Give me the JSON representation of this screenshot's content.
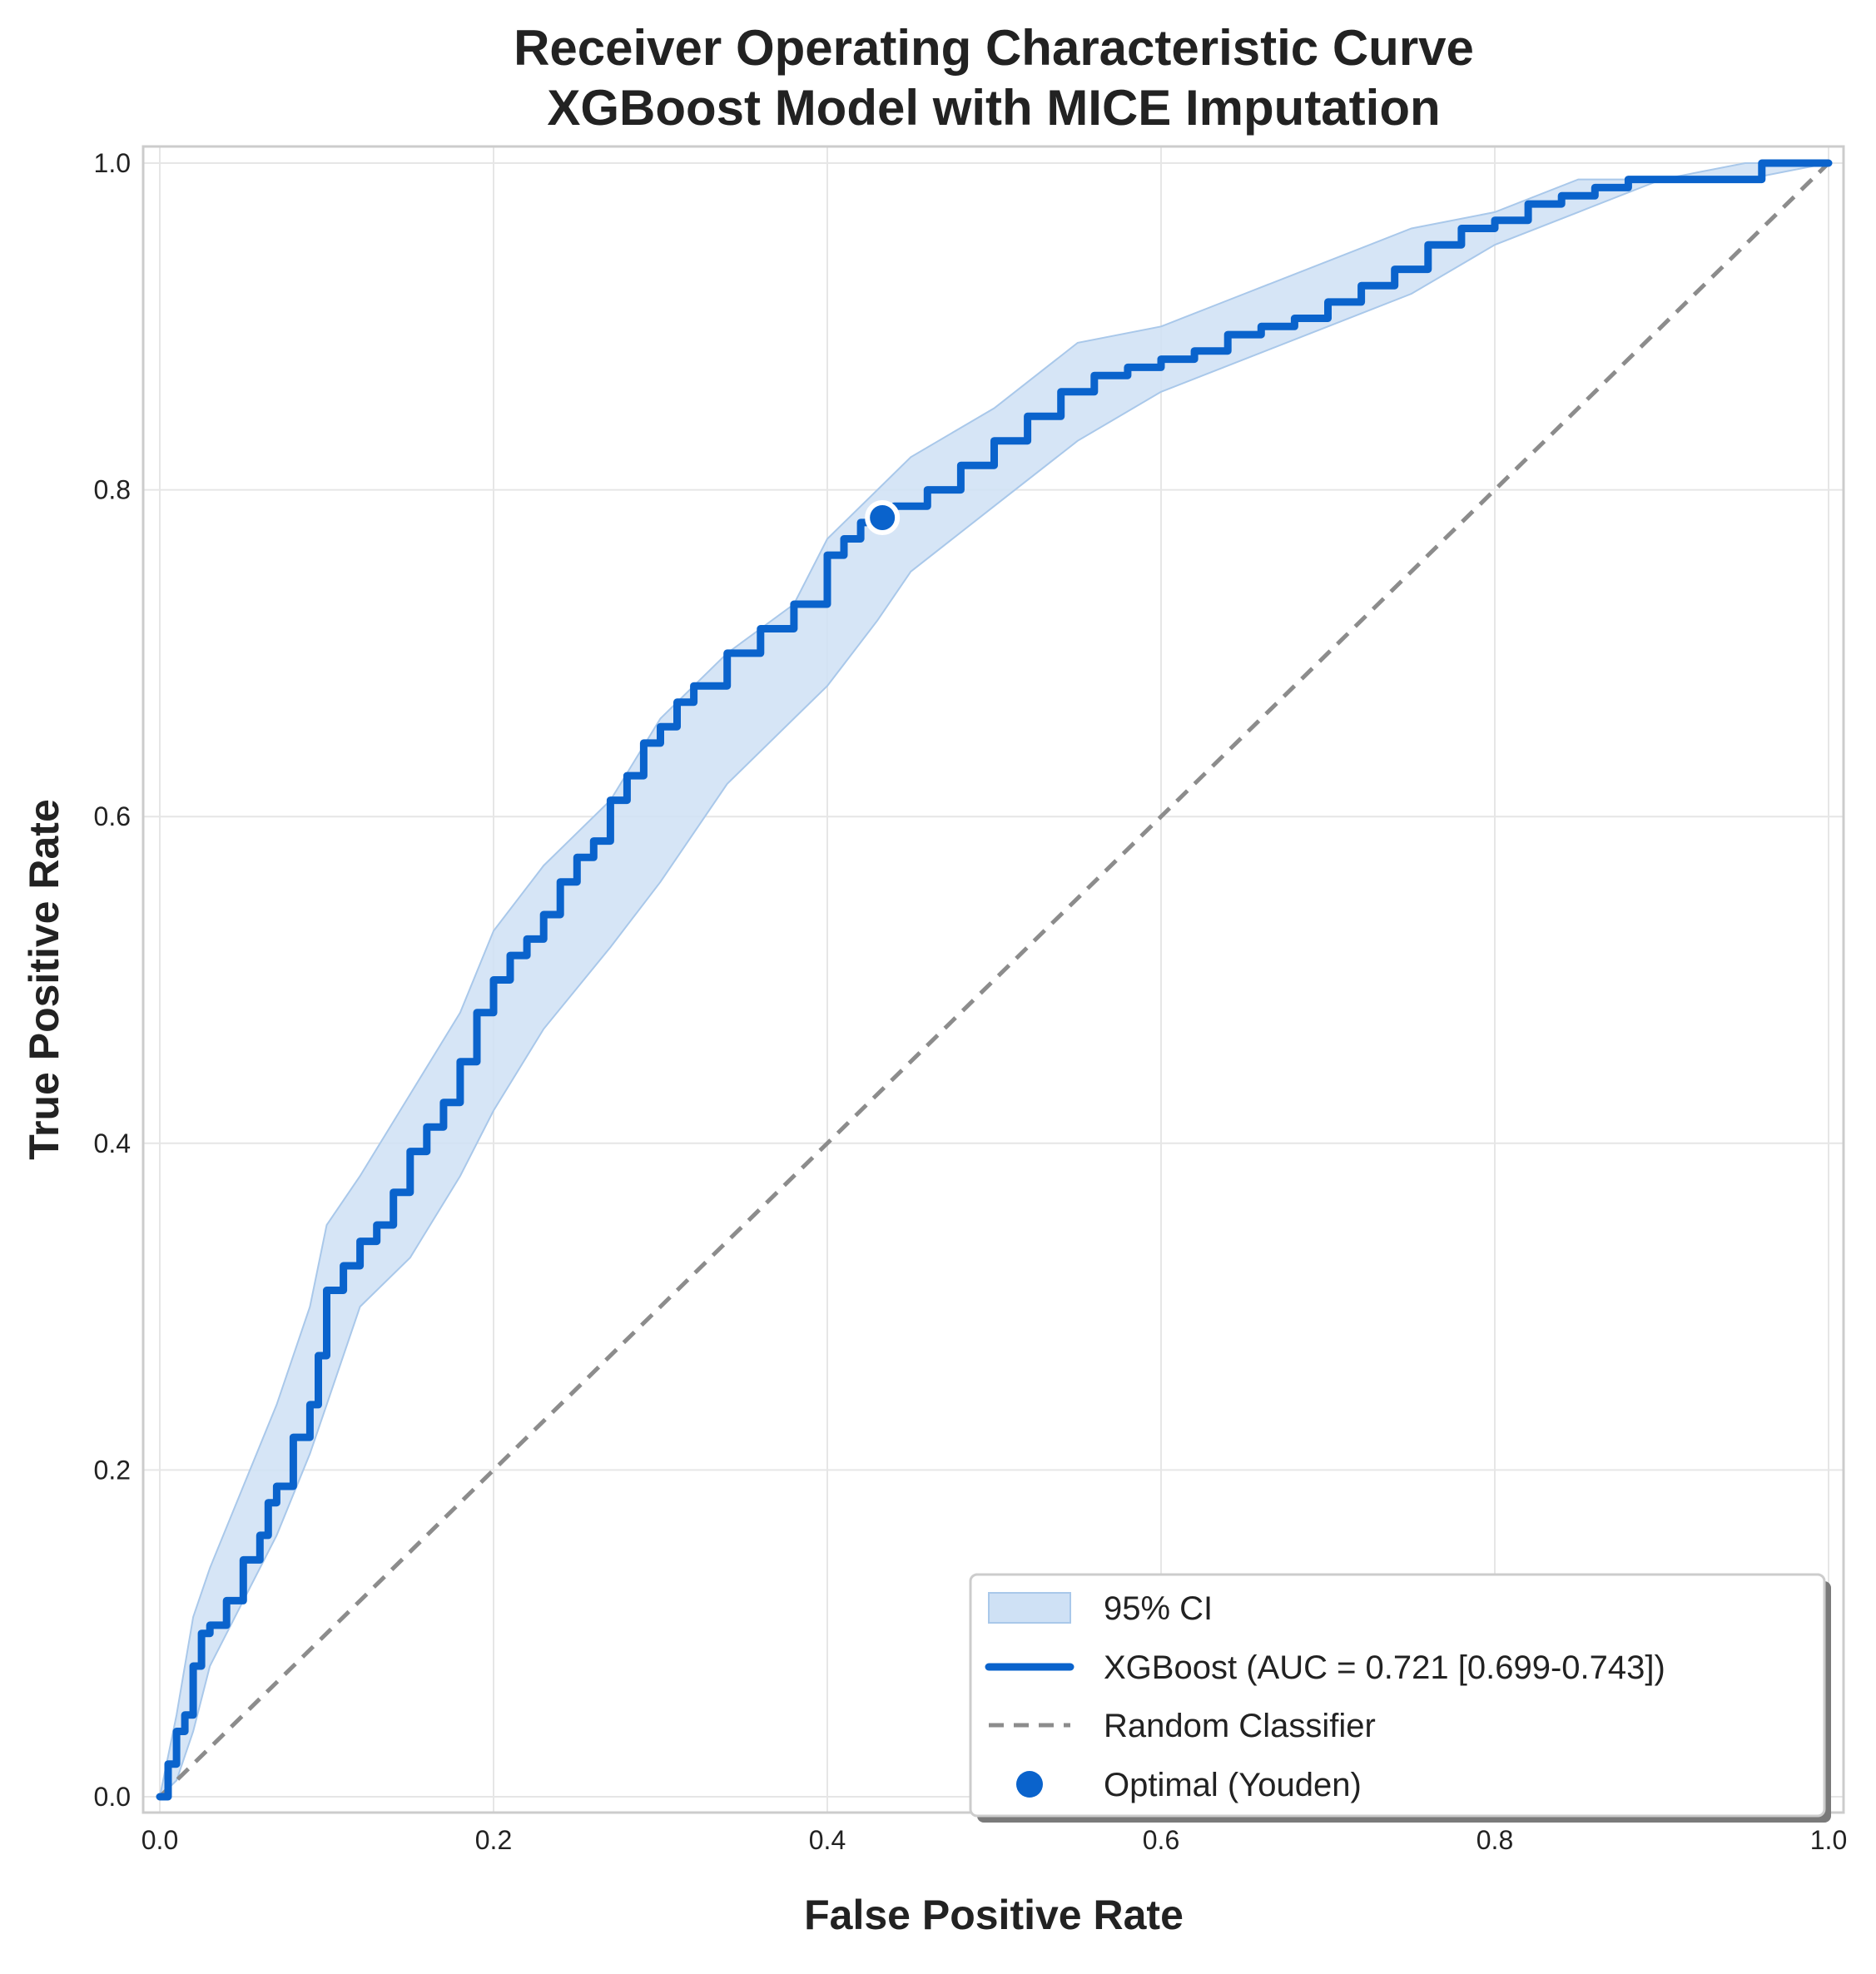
{
  "chart_data": {
    "type": "line",
    "title": [
      "Receiver Operating Characteristic Curve",
      "XGBoost Model with MICE Imputation"
    ],
    "xlabel": "False Positive Rate",
    "ylabel": "True Positive Rate",
    "xlim": [
      0.0,
      1.0
    ],
    "ylim": [
      0.0,
      1.0
    ],
    "x_ticks": [
      "0.0",
      "0.2",
      "0.4",
      "0.6",
      "0.8",
      "1.0"
    ],
    "y_ticks": [
      "0.0",
      "0.2",
      "0.4",
      "0.6",
      "0.8",
      "1.0"
    ],
    "grid": true,
    "legend_position": "bottom-right",
    "colors": {
      "roc": "#0a63cc",
      "ci_fill": "#cfe1f5",
      "ci_edge": "#a9c8ea",
      "random": "#8c8c8c",
      "optimal": "#0a63cc",
      "grid": "#e6e6e6",
      "spine": "#cccccc"
    },
    "series": [
      {
        "name": "XGBoost (AUC = 0.721 [0.699-0.743])",
        "kind": "line",
        "x": [
          0.0,
          0.005,
          0.01,
          0.015,
          0.02,
          0.025,
          0.03,
          0.04,
          0.05,
          0.06,
          0.065,
          0.07,
          0.08,
          0.09,
          0.095,
          0.1,
          0.11,
          0.12,
          0.13,
          0.14,
          0.15,
          0.16,
          0.17,
          0.18,
          0.19,
          0.2,
          0.21,
          0.22,
          0.23,
          0.24,
          0.25,
          0.26,
          0.27,
          0.28,
          0.29,
          0.3,
          0.31,
          0.32,
          0.34,
          0.36,
          0.38,
          0.4,
          0.41,
          0.42,
          0.43,
          0.44,
          0.46,
          0.48,
          0.5,
          0.52,
          0.54,
          0.56,
          0.58,
          0.6,
          0.62,
          0.64,
          0.66,
          0.68,
          0.7,
          0.72,
          0.74,
          0.76,
          0.78,
          0.8,
          0.82,
          0.84,
          0.86,
          0.88,
          0.9,
          0.92,
          0.94,
          0.96,
          0.98,
          1.0
        ],
        "y": [
          0.0,
          0.02,
          0.04,
          0.05,
          0.08,
          0.1,
          0.105,
          0.12,
          0.145,
          0.16,
          0.18,
          0.19,
          0.22,
          0.24,
          0.27,
          0.31,
          0.325,
          0.34,
          0.35,
          0.37,
          0.395,
          0.41,
          0.425,
          0.45,
          0.48,
          0.5,
          0.515,
          0.525,
          0.54,
          0.56,
          0.575,
          0.585,
          0.61,
          0.625,
          0.645,
          0.655,
          0.67,
          0.68,
          0.7,
          0.715,
          0.73,
          0.76,
          0.77,
          0.78,
          0.785,
          0.79,
          0.8,
          0.815,
          0.83,
          0.845,
          0.86,
          0.87,
          0.875,
          0.88,
          0.885,
          0.895,
          0.9,
          0.905,
          0.915,
          0.925,
          0.935,
          0.95,
          0.96,
          0.965,
          0.975,
          0.98,
          0.985,
          0.99,
          0.99,
          0.99,
          0.99,
          1.0,
          1.0,
          1.0
        ]
      },
      {
        "name": "95% CI",
        "kind": "band",
        "x": [
          0.0,
          0.01,
          0.02,
          0.03,
          0.05,
          0.07,
          0.09,
          0.1,
          0.12,
          0.15,
          0.18,
          0.2,
          0.23,
          0.27,
          0.3,
          0.34,
          0.38,
          0.4,
          0.43,
          0.45,
          0.5,
          0.55,
          0.6,
          0.65,
          0.7,
          0.75,
          0.8,
          0.85,
          0.9,
          0.95,
          1.0
        ],
        "lower": [
          0.0,
          0.01,
          0.04,
          0.08,
          0.12,
          0.16,
          0.21,
          0.24,
          0.3,
          0.33,
          0.38,
          0.42,
          0.47,
          0.52,
          0.56,
          0.62,
          0.66,
          0.68,
          0.72,
          0.75,
          0.79,
          0.83,
          0.86,
          0.88,
          0.9,
          0.92,
          0.95,
          0.97,
          0.99,
          0.99,
          1.0
        ],
        "upper": [
          0.0,
          0.05,
          0.11,
          0.14,
          0.19,
          0.24,
          0.3,
          0.35,
          0.38,
          0.43,
          0.48,
          0.53,
          0.57,
          0.61,
          0.66,
          0.7,
          0.73,
          0.77,
          0.8,
          0.82,
          0.85,
          0.89,
          0.9,
          0.92,
          0.94,
          0.96,
          0.97,
          0.99,
          0.99,
          1.0,
          1.0
        ]
      },
      {
        "name": "Random Classifier",
        "kind": "dashed",
        "x": [
          0.0,
          1.0
        ],
        "y": [
          0.0,
          1.0
        ]
      },
      {
        "name": "Optimal (Youden)",
        "kind": "point",
        "x": [
          0.433
        ],
        "y": [
          0.783
        ]
      }
    ],
    "legend": [
      "95% CI",
      "XGBoost (AUC = 0.721 [0.699-0.743])",
      "Random Classifier",
      "Optimal (Youden)"
    ]
  }
}
